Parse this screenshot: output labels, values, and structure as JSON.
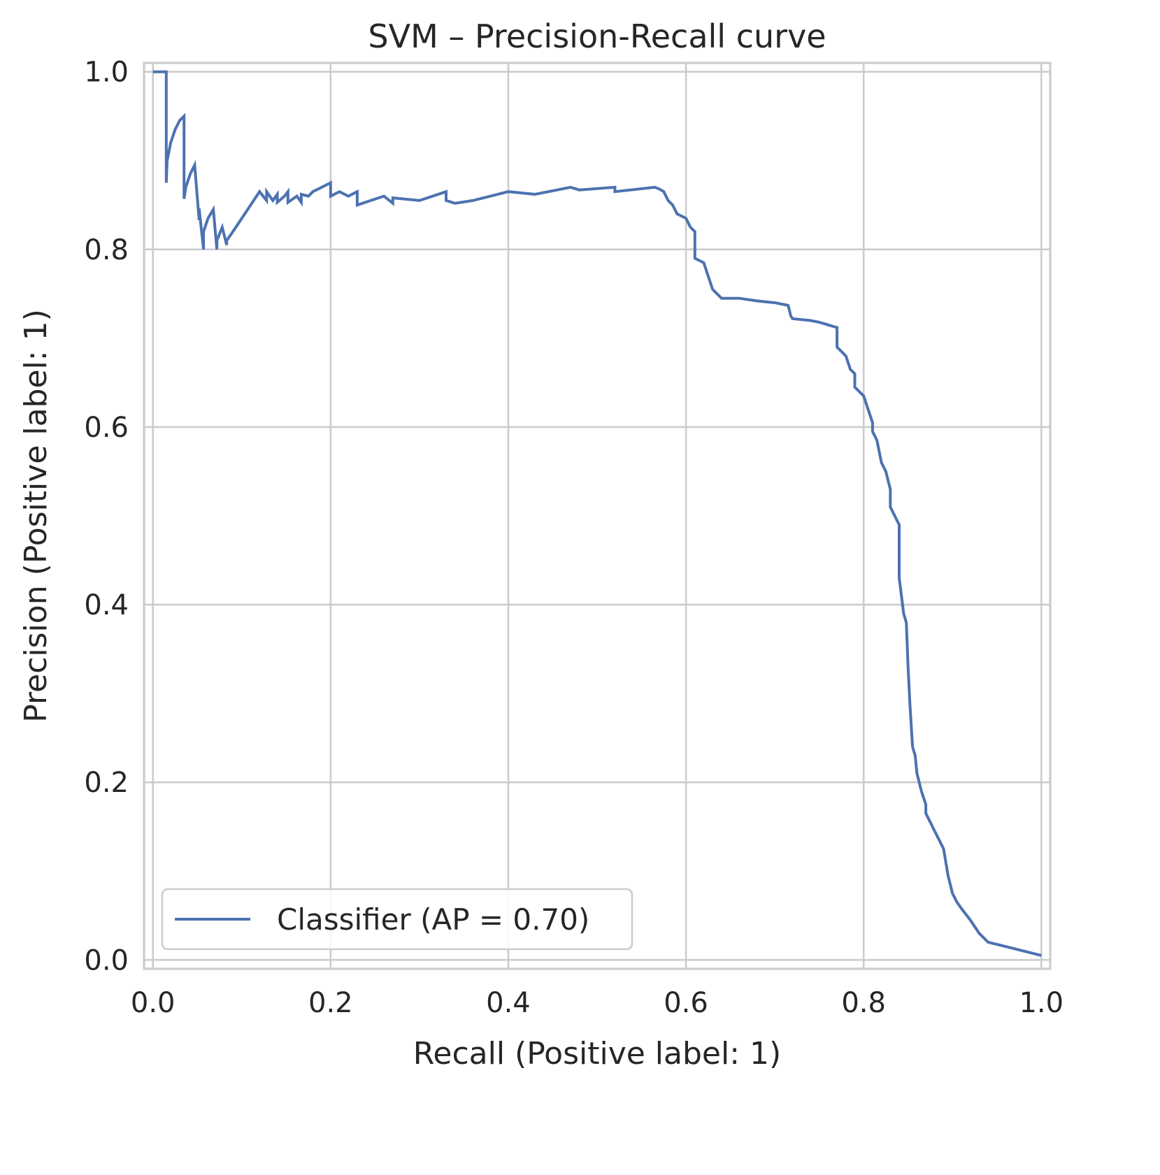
{
  "chart_data": {
    "type": "line",
    "title": "SVM – Precision-Recall curve",
    "xlabel": "Recall (Positive label: 1)",
    "ylabel": "Precision (Positive label: 1)",
    "xlim": [
      -0.01,
      1.01
    ],
    "ylim": [
      -0.01,
      1.01
    ],
    "xticks": [
      "0.0",
      "0.2",
      "0.4",
      "0.6",
      "0.8",
      "1.0"
    ],
    "yticks": [
      "0.0",
      "0.2",
      "0.4",
      "0.6",
      "0.8",
      "1.0"
    ],
    "grid": true,
    "legend_position": "lower-left",
    "series": [
      {
        "name": "Classifier (AP = 0.70)",
        "color": "#4c72b0",
        "x": [
          0.0,
          0.015,
          0.015,
          0.016,
          0.02,
          0.025,
          0.03,
          0.035,
          0.035,
          0.037,
          0.042,
          0.047,
          0.052,
          0.052,
          0.057,
          0.057,
          0.062,
          0.068,
          0.072,
          0.072,
          0.078,
          0.083,
          0.083,
          0.09,
          0.1,
          0.11,
          0.12,
          0.128,
          0.128,
          0.135,
          0.14,
          0.14,
          0.148,
          0.152,
          0.152,
          0.162,
          0.167,
          0.167,
          0.175,
          0.18,
          0.19,
          0.2,
          0.2,
          0.21,
          0.22,
          0.23,
          0.23,
          0.26,
          0.27,
          0.27,
          0.3,
          0.33,
          0.33,
          0.34,
          0.36,
          0.38,
          0.4,
          0.43,
          0.47,
          0.48,
          0.52,
          0.52,
          0.565,
          0.57,
          0.575,
          0.58,
          0.585,
          0.59,
          0.6,
          0.605,
          0.61,
          0.61,
          0.62,
          0.625,
          0.63,
          0.64,
          0.66,
          0.68,
          0.7,
          0.715,
          0.718,
          0.72,
          0.74,
          0.75,
          0.76,
          0.77,
          0.77,
          0.78,
          0.785,
          0.79,
          0.79,
          0.8,
          0.805,
          0.81,
          0.81,
          0.815,
          0.82,
          0.825,
          0.83,
          0.83,
          0.835,
          0.84,
          0.84,
          0.845,
          0.848,
          0.85,
          0.852,
          0.855,
          0.858,
          0.86,
          0.865,
          0.87,
          0.87,
          0.875,
          0.88,
          0.885,
          0.89,
          0.895,
          0.9,
          0.905,
          0.91,
          0.92,
          0.93,
          0.94,
          0.96,
          0.98,
          1.0
        ],
        "y": [
          1.0,
          1.0,
          0.875,
          0.9,
          0.92,
          0.935,
          0.945,
          0.95,
          0.857,
          0.87,
          0.885,
          0.895,
          0.833,
          0.846,
          0.8,
          0.82,
          0.835,
          0.845,
          0.8,
          0.81,
          0.825,
          0.805,
          0.81,
          0.82,
          0.835,
          0.85,
          0.865,
          0.855,
          0.865,
          0.855,
          0.862,
          0.853,
          0.86,
          0.865,
          0.853,
          0.86,
          0.853,
          0.862,
          0.86,
          0.865,
          0.87,
          0.875,
          0.86,
          0.865,
          0.86,
          0.865,
          0.85,
          0.86,
          0.852,
          0.858,
          0.855,
          0.865,
          0.855,
          0.852,
          0.855,
          0.86,
          0.865,
          0.862,
          0.87,
          0.867,
          0.87,
          0.865,
          0.87,
          0.868,
          0.865,
          0.855,
          0.85,
          0.84,
          0.835,
          0.825,
          0.82,
          0.79,
          0.785,
          0.77,
          0.755,
          0.745,
          0.745,
          0.742,
          0.74,
          0.737,
          0.725,
          0.722,
          0.72,
          0.718,
          0.715,
          0.712,
          0.69,
          0.68,
          0.665,
          0.66,
          0.645,
          0.635,
          0.62,
          0.605,
          0.595,
          0.585,
          0.56,
          0.55,
          0.53,
          0.51,
          0.5,
          0.49,
          0.43,
          0.39,
          0.38,
          0.33,
          0.29,
          0.24,
          0.23,
          0.21,
          0.19,
          0.175,
          0.165,
          0.155,
          0.145,
          0.135,
          0.125,
          0.095,
          0.075,
          0.065,
          0.058,
          0.045,
          0.03,
          0.02,
          0.015,
          0.01,
          0.005
        ]
      }
    ]
  }
}
